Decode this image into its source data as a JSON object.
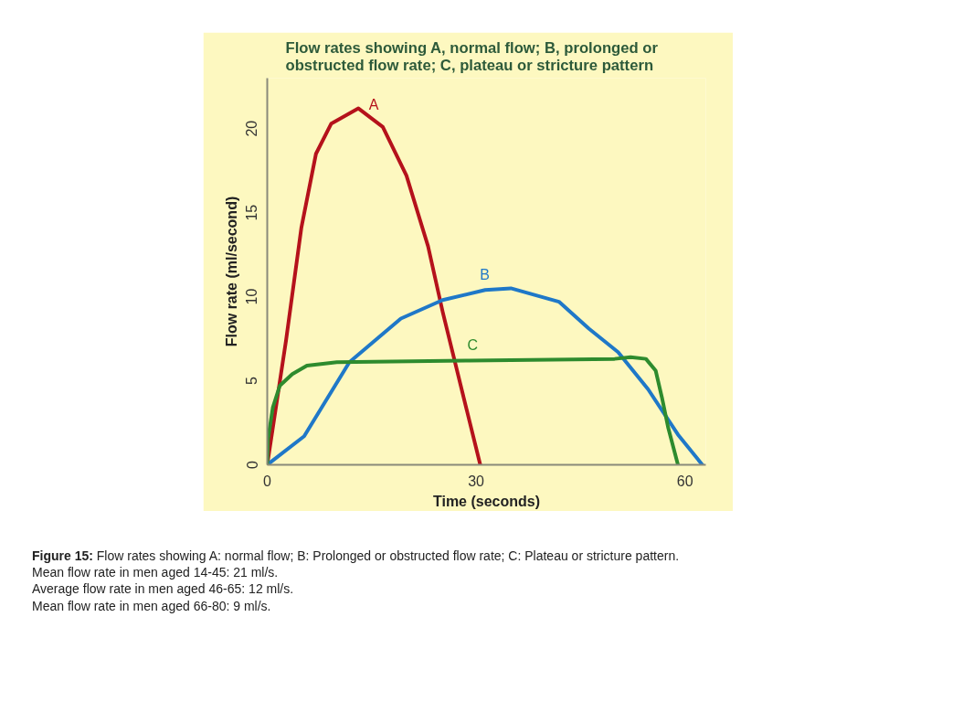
{
  "chart_data": {
    "type": "line",
    "title": "Flow rates showing A, normal flow; B, prolonged or\nobstructed flow rate; C, plateau or stricture pattern",
    "xlabel": "Time (seconds)",
    "ylabel": "Flow rate (ml/second)",
    "xlim": [
      0,
      63
    ],
    "ylim": [
      0,
      23
    ],
    "xticks": [
      0,
      30,
      60
    ],
    "yticks": [
      0,
      5,
      10,
      15,
      20
    ],
    "grid": false,
    "legend": false,
    "marker": "none",
    "line_style": "solid",
    "series": [
      {
        "name": "A",
        "color": "#b5121b",
        "x": [
          0,
          2.7,
          4.9,
          7.0,
          9.2,
          13.1,
          16.6,
          20,
          23.1,
          25.2,
          27.8,
          30.6
        ],
        "values": [
          0,
          7.4,
          14.1,
          18.5,
          20.3,
          21.2,
          20.1,
          17.2,
          13,
          9.1,
          4.7,
          0
        ]
      },
      {
        "name": "B",
        "color": "#1f78c8",
        "x": [
          0,
          5.3,
          11.8,
          19.2,
          25.2,
          31.3,
          35,
          41.9,
          46.2,
          50.4,
          54.7,
          59,
          62.5
        ],
        "values": [
          0,
          1.7,
          6.1,
          8.7,
          9.8,
          10.4,
          10.5,
          9.7,
          8.1,
          6.7,
          4.5,
          1.8,
          0
        ]
      },
      {
        "name": "C",
        "color": "#2e8b2e",
        "x": [
          0,
          0.1,
          0.8,
          1.8,
          3.6,
          5.7,
          10,
          29,
          49.9,
          52.2,
          54.4,
          55.8,
          56.7,
          57.6,
          59
        ],
        "values": [
          0,
          1.5,
          3.4,
          4.7,
          5.4,
          5.9,
          6.1,
          6.2,
          6.3,
          6.4,
          6.3,
          5.6,
          4.0,
          2.2,
          0
        ]
      }
    ],
    "annotations": [
      "Figure 15: Flow rates showing A: normal flow; B: Prolonged or obstructed flow rate; C: Plateau or stricture pattern.",
      "Mean flow rate in men aged 14-45: 21 ml/s.",
      "Average flow rate in men aged 46-65: 12 ml/s.",
      "Mean flow rate in men aged 66-80: 9 ml/s."
    ]
  }
}
